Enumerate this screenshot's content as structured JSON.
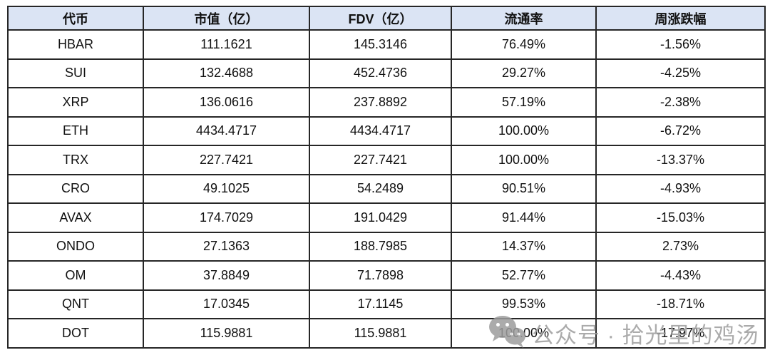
{
  "chart_data": {
    "type": "table",
    "title": "",
    "columns": [
      {
        "key": "token",
        "label": "代币"
      },
      {
        "key": "market-cap",
        "label": "市值（亿）"
      },
      {
        "key": "fdv",
        "label": "FDV（亿）"
      },
      {
        "key": "circulation-rate",
        "label": "流通率"
      },
      {
        "key": "weekly-change",
        "label": "周涨跌幅"
      }
    ],
    "rows": [
      [
        "HBAR",
        "111.1621",
        "145.3146",
        "76.49%",
        "-1.56%"
      ],
      [
        "SUI",
        "132.4688",
        "452.4736",
        "29.27%",
        "-4.25%"
      ],
      [
        "XRP",
        "136.0616",
        "237.8892",
        "57.19%",
        "-2.38%"
      ],
      [
        "ETH",
        "4434.4717",
        "4434.4717",
        "100.00%",
        "-6.72%"
      ],
      [
        "TRX",
        "227.7421",
        "227.7421",
        "100.00%",
        "-13.37%"
      ],
      [
        "CRO",
        "49.1025",
        "54.2489",
        "90.51%",
        "-4.93%"
      ],
      [
        "AVAX",
        "174.7029",
        "191.0429",
        "91.44%",
        "-15.03%"
      ],
      [
        "ONDO",
        "27.1363",
        "188.7985",
        "14.37%",
        "2.73%"
      ],
      [
        "OM",
        "37.8849",
        "71.7898",
        "52.77%",
        "-4.43%"
      ],
      [
        "QNT",
        "17.0345",
        "17.1145",
        "99.53%",
        "-18.71%"
      ],
      [
        "DOT",
        "115.9881",
        "115.9881",
        "100.00%",
        "-17.97%"
      ]
    ]
  },
  "colors": {
    "header_bg": "#dbe4f4",
    "grid_border": "#262626",
    "text": "#111111",
    "watermark": "#9d9d9d"
  },
  "watermark": {
    "icon": "wechat-icon",
    "text": "公众号 · 拾光里的鸡汤"
  }
}
